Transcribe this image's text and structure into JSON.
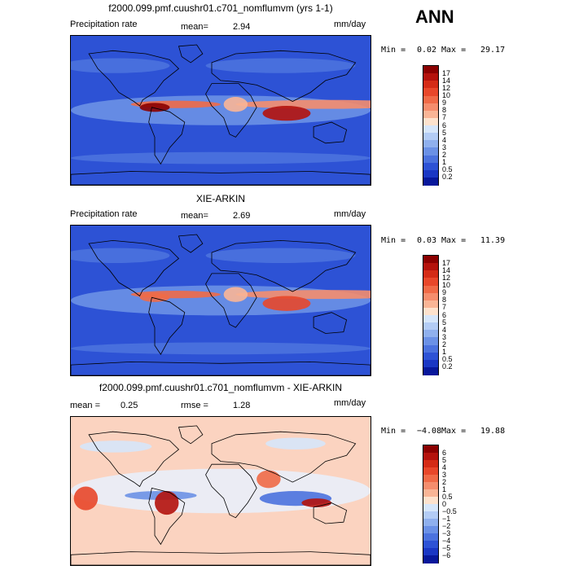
{
  "season": "ANN",
  "units": "mm/day",
  "panels": [
    {
      "title": "f2000.099.pmf.cuushr01.c701_nomflumvm (yrs 1-1)",
      "variable": "Precipitation rate",
      "stat1_label": "mean=",
      "stat1_value": "2.94",
      "stat2_label": "",
      "stat2_value": "",
      "units": "mm/day",
      "min_label": "Min =",
      "min_value": "0.02",
      "max_label": "Max =",
      "max_value": "29.17",
      "colorbar_labels": [
        "17",
        "14",
        "12",
        "10",
        "9",
        "8",
        "7",
        "6",
        "5",
        "4",
        "3",
        "2",
        "1",
        "0.5",
        "0.2"
      ],
      "colorbar_colors": [
        "#8b0000",
        "#b4120c",
        "#d42b16",
        "#e8472a",
        "#f06a47",
        "#f58d6d",
        "#f9b596",
        "#fde2cd",
        "#d6e6fa",
        "#b3ccf5",
        "#8fb0ee",
        "#6b91e6",
        "#4b72de",
        "#2d52d5",
        "#1a37c4",
        "#08189b"
      ]
    },
    {
      "title": "XIE-ARKIN",
      "variable": "Precipitation rate",
      "stat1_label": "mean=",
      "stat1_value": "2.69",
      "stat2_label": "",
      "stat2_value": "",
      "units": "mm/day",
      "min_label": "Min =",
      "min_value": "0.03",
      "max_label": "Max =",
      "max_value": "11.39",
      "colorbar_labels": [
        "17",
        "14",
        "12",
        "10",
        "9",
        "8",
        "7",
        "6",
        "5",
        "4",
        "3",
        "2",
        "1",
        "0.5",
        "0.2"
      ],
      "colorbar_colors": [
        "#8b0000",
        "#b4120c",
        "#d42b16",
        "#e8472a",
        "#f06a47",
        "#f58d6d",
        "#f9b596",
        "#fde2cd",
        "#d6e6fa",
        "#b3ccf5",
        "#8fb0ee",
        "#6b91e6",
        "#4b72de",
        "#2d52d5",
        "#1a37c4",
        "#08189b"
      ]
    },
    {
      "title": "f2000.099.pmf.cuushr01.c701_nomflumvm - XIE-ARKIN",
      "variable": "",
      "stat1_label": "mean =",
      "stat1_value": "0.25",
      "stat2_label": "rmse =",
      "stat2_value": "1.28",
      "units": "mm/day",
      "min_label": "Min =",
      "min_value": "−4.08",
      "max_label": "Max =",
      "max_value": "19.88",
      "colorbar_labels": [
        "6",
        "5",
        "4",
        "3",
        "2",
        "1",
        "0.5",
        "0",
        "−0.5",
        "−1",
        "−2",
        "−3",
        "−4",
        "−5",
        "−6"
      ],
      "colorbar_colors": [
        "#8b0000",
        "#b4120c",
        "#d42b16",
        "#e8472a",
        "#f06a47",
        "#f58d6d",
        "#f9b596",
        "#fde2cd",
        "#d6e6fa",
        "#b3ccf5",
        "#8fb0ee",
        "#6b91e6",
        "#4b72de",
        "#2d52d5",
        "#1a37c4",
        "#08189b"
      ]
    }
  ],
  "chart_data": [
    {
      "type": "heatmap",
      "title": "f2000.099.pmf.cuushr01.c701_nomflumvm (yrs 1-1)",
      "variable": "Precipitation rate",
      "units": "mm/day",
      "mean": 2.94,
      "min": 0.02,
      "max": 29.17,
      "contour_levels": [
        0.2,
        0.5,
        1,
        2,
        3,
        4,
        5,
        6,
        7,
        8,
        9,
        10,
        12,
        14,
        17
      ]
    },
    {
      "type": "heatmap",
      "title": "XIE-ARKIN",
      "variable": "Precipitation rate",
      "units": "mm/day",
      "mean": 2.69,
      "min": 0.03,
      "max": 11.39,
      "contour_levels": [
        0.2,
        0.5,
        1,
        2,
        3,
        4,
        5,
        6,
        7,
        8,
        9,
        10,
        12,
        14,
        17
      ]
    },
    {
      "type": "heatmap",
      "title": "f2000.099.pmf.cuushr01.c701_nomflumvm - XIE-ARKIN",
      "units": "mm/day",
      "mean": 0.25,
      "rmse": 1.28,
      "min": -4.08,
      "max": 19.88,
      "contour_levels": [
        -6,
        -5,
        -4,
        -3,
        -2,
        -1,
        -0.5,
        0,
        0.5,
        1,
        2,
        3,
        4,
        5,
        6
      ]
    }
  ]
}
